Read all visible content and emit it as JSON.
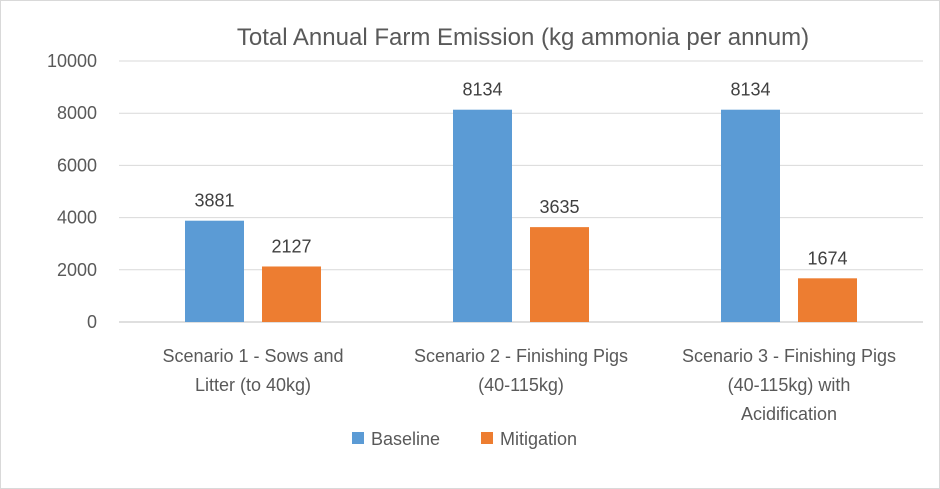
{
  "chart_data": {
    "type": "bar",
    "title": "Total Annual Farm Emission (kg ammonia per annum)",
    "xlabel": "",
    "ylabel": "",
    "ylim": [
      0,
      10000
    ],
    "yticks": [
      0,
      2000,
      4000,
      6000,
      8000,
      10000
    ],
    "grid": true,
    "legend_position": "bottom",
    "categories": [
      [
        "Scenario 1 - Sows and",
        "Litter (to 40kg)"
      ],
      [
        "Scenario 2 - Finishing Pigs",
        "(40-115kg)"
      ],
      [
        "Scenario 3 - Finishing Pigs",
        "(40-115kg) with",
        "Acidification"
      ]
    ],
    "series": [
      {
        "name": "Baseline",
        "color": "#5b9bd5",
        "values": [
          3881,
          8134,
          8134
        ]
      },
      {
        "name": "Mitigation",
        "color": "#ed7d31",
        "values": [
          2127,
          3635,
          1674
        ]
      }
    ]
  }
}
